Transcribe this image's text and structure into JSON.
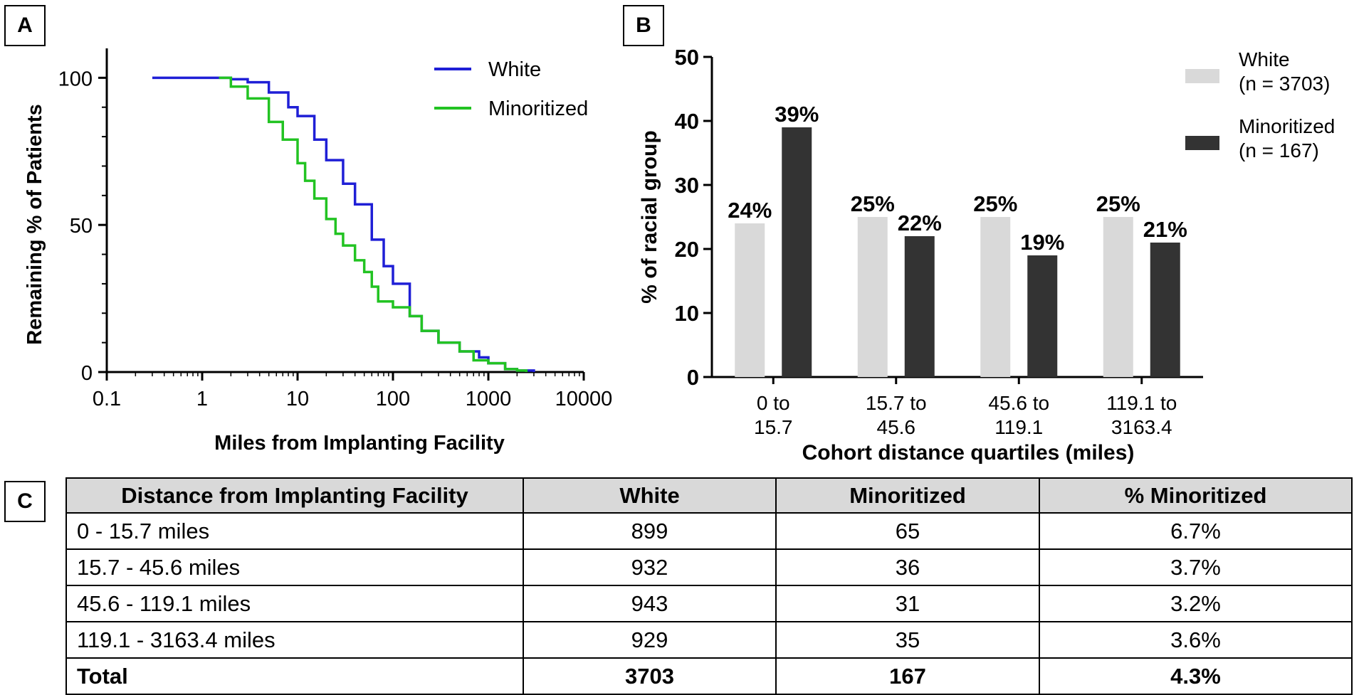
{
  "panels": {
    "a": "A",
    "b": "B",
    "c": "C"
  },
  "colors": {
    "white_line": "#1f1fd6",
    "minoritized_line": "#22c322",
    "white_bar": "#d9d9d9",
    "minoritized_bar": "#333333"
  },
  "chart_data": [
    {
      "type": "line",
      "title": "",
      "xlabel": "Miles from Implanting Facility",
      "ylabel": "Remaining % of Patients",
      "xscale": "log",
      "xlim": [
        0.1,
        10000
      ],
      "ylim": [
        0,
        110
      ],
      "xticks": [
        0.1,
        1,
        10,
        100,
        1000,
        10000
      ],
      "xtick_labels": [
        "0.1",
        "1",
        "10",
        "100",
        "1000",
        "10000"
      ],
      "yticks": [
        0,
        50,
        100
      ],
      "ytick_labels": [
        "0",
        "50",
        "100"
      ],
      "legend_position": "top-right",
      "series": [
        {
          "name": "White",
          "x": [
            0.3,
            1.0,
            2.0,
            3.0,
            5.0,
            8.0,
            10,
            15,
            20,
            30,
            40,
            60,
            80,
            100,
            150,
            200,
            300,
            500,
            800,
            1000,
            1500,
            2000,
            3000
          ],
          "y": [
            100,
            100,
            99.5,
            98.5,
            95,
            90,
            87,
            79,
            72,
            64,
            57,
            45,
            36,
            30,
            19,
            14,
            10,
            7,
            5,
            3,
            1,
            0.5,
            0
          ]
        },
        {
          "name": "Minoritized",
          "x": [
            1.5,
            2.0,
            3.0,
            5.0,
            7.0,
            10,
            12,
            15,
            20,
            25,
            30,
            40,
            50,
            60,
            70,
            100,
            150,
            200,
            300,
            500,
            700,
            1000,
            1500,
            2000,
            2500
          ],
          "y": [
            100,
            97,
            93,
            85,
            79,
            71,
            65,
            59,
            52,
            47,
            43,
            38,
            34,
            29,
            24,
            22,
            19,
            14,
            10,
            7,
            4,
            3,
            1,
            0.5,
            0
          ]
        }
      ]
    },
    {
      "type": "bar",
      "title": "",
      "xlabel": "Cohort distance quartiles (miles)",
      "ylabel": "% of racial group",
      "ylim": [
        0,
        50
      ],
      "yticks": [
        0,
        10,
        20,
        30,
        40,
        50
      ],
      "ytick_labels": [
        "0",
        "10",
        "20",
        "30",
        "40",
        "50"
      ],
      "categories": [
        [
          "0 to",
          "15.7"
        ],
        [
          "15.7 to",
          "45.6"
        ],
        [
          "45.6 to",
          "119.1"
        ],
        [
          "119.1 to",
          "3163.4"
        ]
      ],
      "legend_position": "top-right",
      "series": [
        {
          "name": "White",
          "legend": [
            "White",
            "(n = 3703)"
          ],
          "values": [
            24,
            25,
            25,
            25
          ],
          "labels": [
            "24%",
            "25%",
            "25%",
            "25%"
          ]
        },
        {
          "name": "Minoritized",
          "legend": [
            "Minoritized",
            "(n = 167)"
          ],
          "values": [
            39,
            22,
            19,
            21
          ],
          "labels": [
            "39%",
            "22%",
            "19%",
            "21%"
          ]
        }
      ]
    },
    {
      "type": "table",
      "headers": [
        "Distance from Implanting Facility",
        "White",
        "Minoritized",
        "% Minoritized"
      ],
      "rows": [
        [
          "0 - 15.7 miles",
          "899",
          "65",
          "6.7%"
        ],
        [
          "15.7 - 45.6 miles",
          "932",
          "36",
          "3.7%"
        ],
        [
          "45.6 - 119.1 miles",
          "943",
          "31",
          "3.2%"
        ],
        [
          "119.1 - 3163.4 miles",
          "929",
          "35",
          "3.6%"
        ],
        [
          "Total",
          "3703",
          "167",
          "4.3%"
        ]
      ]
    }
  ]
}
